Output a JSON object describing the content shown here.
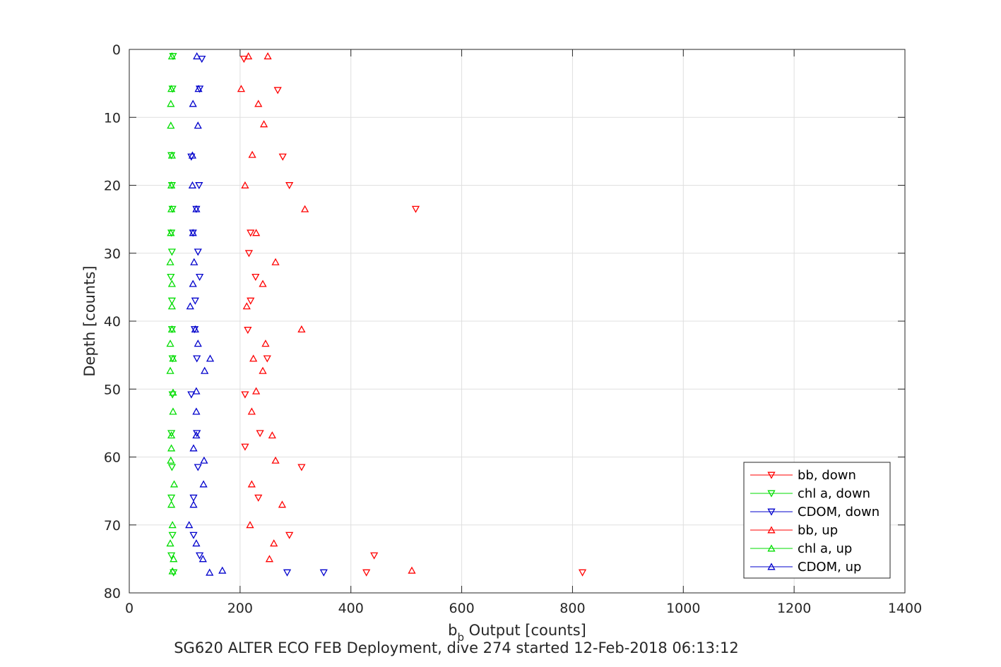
{
  "chart_data": {
    "type": "scatter",
    "xlabel": "b",
    "xlabel_sub": "b",
    "xlabel_rest": " Output [counts]",
    "ylabel": "Depth [counts]",
    "caption": "SG620 ALTER ECO FEB Deployment, dive 274 started 12-Feb-2018 06:13:12",
    "xlim": [
      0,
      1400
    ],
    "ylim": [
      80,
      0
    ],
    "xticks": [
      "0",
      "200",
      "400",
      "600",
      "800",
      "1000",
      "1200",
      "1400"
    ],
    "yticks": [
      "0",
      "10",
      "20",
      "30",
      "40",
      "50",
      "60",
      "70",
      "80"
    ],
    "grid": true,
    "legend_position": "bottom-right",
    "series": [
      {
        "name": "bb, down",
        "color": "#ff0000",
        "marker": "triangle-down",
        "points": [
          [
            207,
            1.4
          ],
          [
            268,
            6
          ],
          [
            277,
            15.8
          ],
          [
            289,
            20
          ],
          [
            517,
            23.5
          ],
          [
            219,
            27
          ],
          [
            216,
            30
          ],
          [
            228,
            33.5
          ],
          [
            219,
            37
          ],
          [
            214,
            41.3
          ],
          [
            249,
            45.5
          ],
          [
            209,
            50.8
          ],
          [
            236,
            56.5
          ],
          [
            209,
            58.5
          ],
          [
            311,
            61.5
          ],
          [
            233,
            66
          ],
          [
            289,
            71.5
          ],
          [
            442,
            74.5
          ],
          [
            428,
            77
          ],
          [
            818,
            77
          ]
        ]
      },
      {
        "name": "chl a, down",
        "color": "#00dd00",
        "marker": "triangle-down",
        "points": [
          [
            79,
            1
          ],
          [
            78,
            5.8
          ],
          [
            76,
            15.6
          ],
          [
            77,
            20
          ],
          [
            78,
            23.5
          ],
          [
            76,
            27
          ],
          [
            77,
            29.8
          ],
          [
            75,
            33.5
          ],
          [
            77,
            37
          ],
          [
            77,
            41.2
          ],
          [
            78,
            45.5
          ],
          [
            78,
            50.8
          ],
          [
            76,
            56.5
          ],
          [
            77,
            61.5
          ],
          [
            76,
            66
          ],
          [
            78,
            71.5
          ],
          [
            76,
            74.5
          ],
          [
            80,
            77
          ]
        ]
      },
      {
        "name": "CDOM, down",
        "color": "#0000cc",
        "marker": "triangle-down",
        "points": [
          [
            131,
            1.4
          ],
          [
            127,
            5.8
          ],
          [
            112,
            15.8
          ],
          [
            126,
            20
          ],
          [
            121,
            23.5
          ],
          [
            115,
            27
          ],
          [
            124,
            29.8
          ],
          [
            127,
            33.5
          ],
          [
            119,
            37
          ],
          [
            118,
            41.2
          ],
          [
            122,
            45.5
          ],
          [
            112,
            50.8
          ],
          [
            122,
            56.5
          ],
          [
            124,
            61.5
          ],
          [
            116,
            66
          ],
          [
            116,
            71.5
          ],
          [
            127,
            74.5
          ],
          [
            285,
            77
          ],
          [
            351,
            77
          ]
        ]
      },
      {
        "name": "bb, up",
        "color": "#ff0000",
        "marker": "triangle-up",
        "points": [
          [
            215,
            1
          ],
          [
            250,
            1
          ],
          [
            202,
            5.8
          ],
          [
            233,
            8
          ],
          [
            243,
            11
          ],
          [
            222,
            15.5
          ],
          [
            209,
            20
          ],
          [
            317,
            23.5
          ],
          [
            229,
            27
          ],
          [
            264,
            31.3
          ],
          [
            241,
            34.5
          ],
          [
            212,
            37.8
          ],
          [
            311,
            41.2
          ],
          [
            246,
            43.3
          ],
          [
            224,
            45.5
          ],
          [
            241,
            47.3
          ],
          [
            229,
            50.3
          ],
          [
            221,
            53.3
          ],
          [
            258,
            56.8
          ],
          [
            264,
            60.5
          ],
          [
            221,
            64
          ],
          [
            276,
            67
          ],
          [
            218,
            70
          ],
          [
            261,
            72.7
          ],
          [
            253,
            75
          ],
          [
            510,
            76.7
          ]
        ]
      },
      {
        "name": "chl a, up",
        "color": "#00dd00",
        "marker": "triangle-up",
        "points": [
          [
            77,
            1
          ],
          [
            76,
            5.8
          ],
          [
            75,
            8
          ],
          [
            75,
            11.2
          ],
          [
            77,
            15.6
          ],
          [
            76,
            20
          ],
          [
            76,
            23.5
          ],
          [
            75,
            27
          ],
          [
            74,
            31.3
          ],
          [
            77,
            34.5
          ],
          [
            77,
            37.8
          ],
          [
            77,
            41.2
          ],
          [
            74,
            43.3
          ],
          [
            79,
            45.5
          ],
          [
            74,
            47.3
          ],
          [
            79,
            50.5
          ],
          [
            79,
            53.3
          ],
          [
            76,
            56.8
          ],
          [
            76,
            58.7
          ],
          [
            75,
            60.5
          ],
          [
            81,
            64
          ],
          [
            76,
            67
          ],
          [
            78,
            70
          ],
          [
            74,
            72.7
          ],
          [
            80,
            75
          ],
          [
            78,
            76.8
          ]
        ]
      },
      {
        "name": "CDOM, up",
        "color": "#0000cc",
        "marker": "triangle-up",
        "points": [
          [
            122,
            1
          ],
          [
            125,
            5.8
          ],
          [
            115,
            8
          ],
          [
            124,
            11.2
          ],
          [
            114,
            15.6
          ],
          [
            114,
            20
          ],
          [
            121,
            23.5
          ],
          [
            115,
            27
          ],
          [
            117,
            31.3
          ],
          [
            115,
            34.5
          ],
          [
            110,
            37.8
          ],
          [
            119,
            41.2
          ],
          [
            124,
            43.3
          ],
          [
            146,
            45.5
          ],
          [
            136,
            47.3
          ],
          [
            121,
            50.3
          ],
          [
            121,
            53.3
          ],
          [
            121,
            56.8
          ],
          [
            116,
            58.7
          ],
          [
            135,
            60.5
          ],
          [
            134,
            64
          ],
          [
            116,
            67
          ],
          [
            108,
            70
          ],
          [
            121,
            72.7
          ],
          [
            133,
            75
          ],
          [
            145,
            77
          ],
          [
            168,
            76.7
          ]
        ]
      }
    ]
  }
}
